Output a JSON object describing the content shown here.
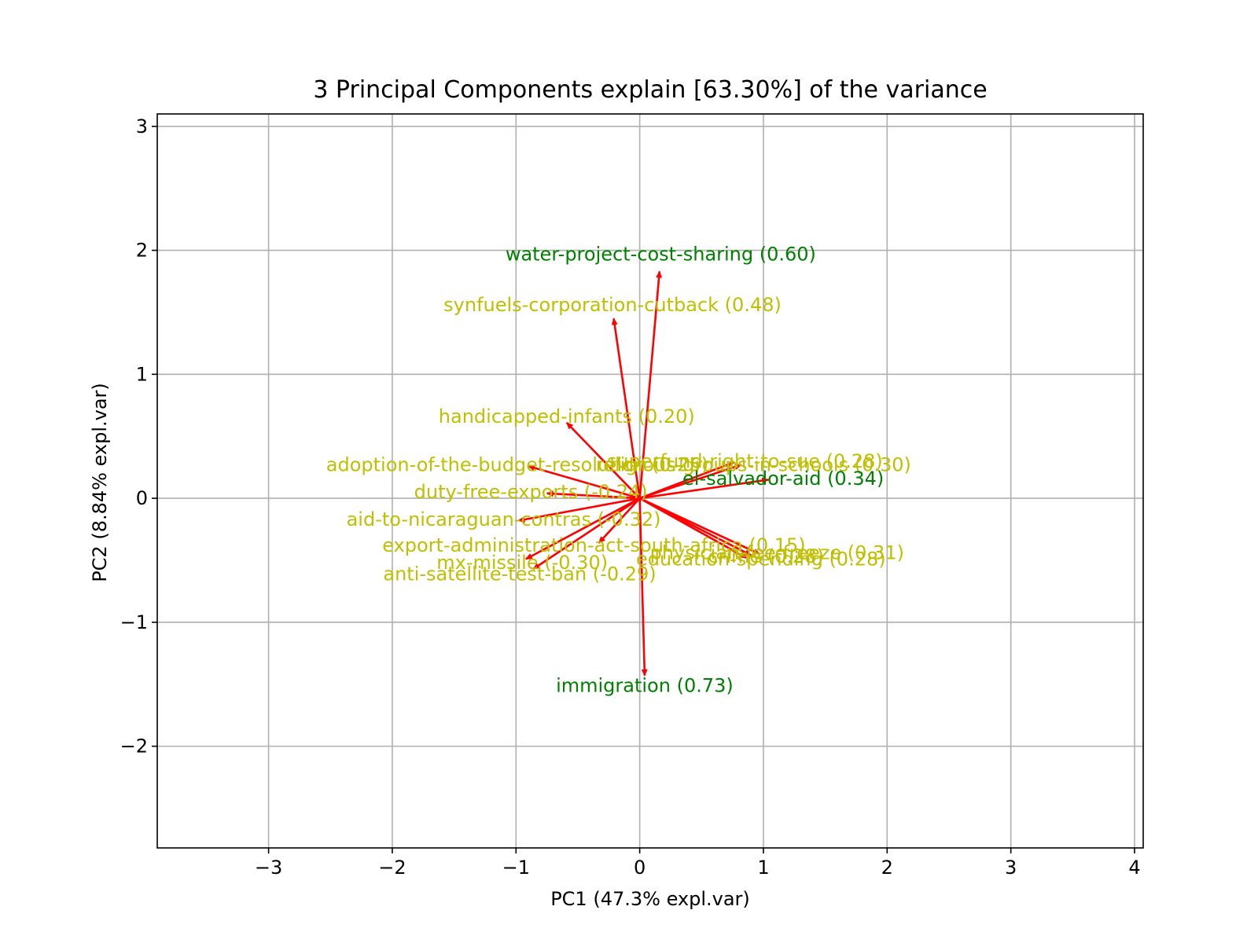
{
  "chart_data": {
    "type": "scatter",
    "subtype": "pca-biplot-loadings",
    "title": "3 Principal Components explain [63.30%] of the variance",
    "xlabel": "PC1 (47.3% expl.var)",
    "ylabel": "PC2 (8.84% expl.var)",
    "xlim": [
      -3.9,
      4.07
    ],
    "ylim": [
      -2.82,
      3.1
    ],
    "xticks": [
      -3,
      -2,
      -1,
      0,
      1,
      2,
      3,
      4
    ],
    "yticks": [
      -2,
      -1,
      0,
      1,
      2,
      3
    ],
    "xtick_labels": [
      "−3",
      "−2",
      "−1",
      "0",
      "1",
      "2",
      "3",
      "4"
    ],
    "ytick_labels": [
      "−2",
      "−1",
      "0",
      "1",
      "2",
      "3"
    ],
    "grid": true,
    "arrow_color": "#ff0000",
    "label_colors": {
      "strong": "#008000",
      "moderate": "#bfbf00"
    },
    "vectors": [
      {
        "label": "water-project-cost-sharing (0.60)",
        "x": 0.16,
        "y": 1.83,
        "label_x": 0.17,
        "label_y": 1.97,
        "class": "strong"
      },
      {
        "label": "synfuels-corporation-cutback (0.48)",
        "x": -0.21,
        "y": 1.45,
        "label_x": -0.22,
        "label_y": 1.56,
        "class": "moderate"
      },
      {
        "label": "handicapped-infants (0.20)",
        "x": -0.59,
        "y": 0.61,
        "label_x": -0.59,
        "label_y": 0.66,
        "class": "moderate"
      },
      {
        "label": "adoption-of-the-budget-resolution (0.25)",
        "x": -0.9,
        "y": 0.26,
        "label_x": -0.99,
        "label_y": 0.27,
        "class": "moderate"
      },
      {
        "label": "religious-groups-in-schools (0.30)",
        "x": 0.82,
        "y": 0.27,
        "label_x": 0.92,
        "label_y": 0.27,
        "class": "moderate"
      },
      {
        "label": "superfund-right-to-sue (0.28)",
        "x": 0.76,
        "y": 0.29,
        "label_x": 0.85,
        "label_y": 0.3,
        "class": "moderate"
      },
      {
        "label": "el-salvador-aid (0.34)",
        "x": 1.04,
        "y": 0.15,
        "label_x": 1.16,
        "label_y": 0.16,
        "class": "strong"
      },
      {
        "label": "duty-free-exports (-0.24)",
        "x": -0.75,
        "y": 0.04,
        "label_x": -0.88,
        "label_y": 0.05,
        "class": "moderate"
      },
      {
        "label": "aid-to-nicaraguan-contras (-0.32)",
        "x": -0.98,
        "y": -0.18,
        "label_x": -1.1,
        "label_y": -0.17,
        "class": "moderate"
      },
      {
        "label": "export-administration-act-south-africa (0.15)",
        "x": -0.33,
        "y": -0.36,
        "label_x": -0.37,
        "label_y": -0.38,
        "class": "moderate"
      },
      {
        "label": "physician-fee-freeze (0.31)",
        "x": 0.97,
        "y": -0.45,
        "label_x": 1.11,
        "label_y": -0.44,
        "class": "moderate"
      },
      {
        "label": "crime (0.28)",
        "x": 0.9,
        "y": -0.46,
        "label_x": 1.02,
        "label_y": -0.47,
        "class": "moderate"
      },
      {
        "label": "education-spending (0.28)",
        "x": 0.86,
        "y": -0.48,
        "label_x": 0.98,
        "label_y": -0.49,
        "class": "moderate"
      },
      {
        "label": "mx-missile (-0.30)",
        "x": -0.92,
        "y": -0.49,
        "label_x": -0.95,
        "label_y": -0.52,
        "class": "moderate"
      },
      {
        "label": "anti-satellite-test-ban (-0.29)",
        "x": -0.86,
        "y": -0.57,
        "label_x": -0.97,
        "label_y": -0.61,
        "class": "moderate"
      },
      {
        "label": "immigration (0.73)",
        "x": 0.04,
        "y": -1.43,
        "label_x": 0.04,
        "label_y": -1.51,
        "class": "strong"
      }
    ]
  }
}
